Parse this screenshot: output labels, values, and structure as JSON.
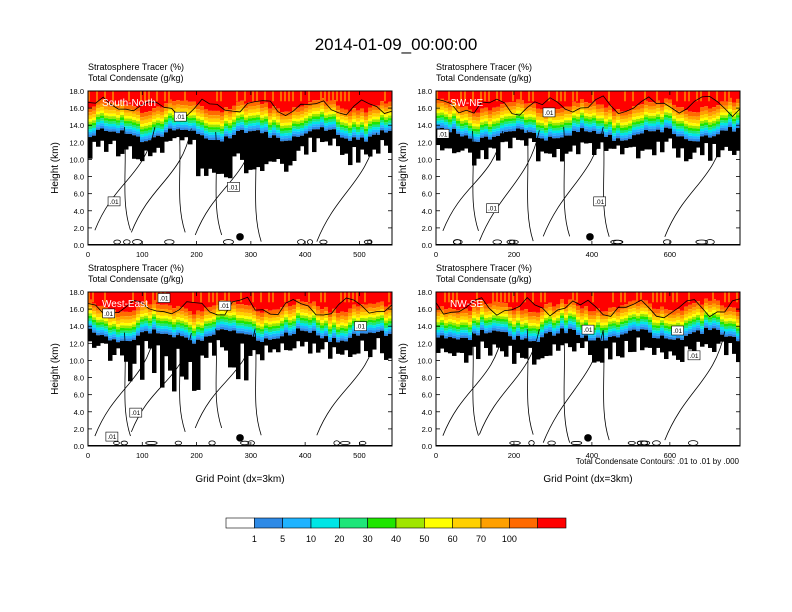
{
  "title": "2014-01-09_00:00:00",
  "footnote": "Total Condensate Contours: .01 to .01 by .000",
  "colorbar": {
    "colors": [
      "#ffffff",
      "#2e8ae6",
      "#1fb3ff",
      "#00e6e6",
      "#1ee679",
      "#1fe600",
      "#a0e600",
      "#ffff00",
      "#ffd000",
      "#ffa000",
      "#ff6a00",
      "#ff0000"
    ],
    "labels": [
      "1",
      "5",
      "10",
      "20",
      "30",
      "40",
      "50",
      "60",
      "70",
      "100"
    ]
  },
  "chart_data": [
    {
      "type": "heatmap",
      "panel_label": "South-North",
      "title_lines": [
        "Stratosphere Tracer   (%)",
        "Total Condensate   (g/kg)"
      ],
      "ylabel": "Height (km)",
      "xlabel": "",
      "ylim": [
        0,
        18
      ],
      "yticks": [
        "0.0",
        "2.0",
        "4.0",
        "6.0",
        "8.0",
        "10.0",
        "12.0",
        "14.0",
        "16.0",
        "18.0"
      ],
      "xlim": [
        0,
        560
      ],
      "xticks": [
        0,
        100,
        200,
        300,
        400,
        500
      ],
      "marker_x": 280,
      "contour_labels": [
        {
          "text": ".01",
          "x": 170,
          "y": 15.0
        },
        {
          "text": ".01",
          "x": 268,
          "y": 6.8
        },
        {
          "text": ".01",
          "x": 48,
          "y": 5.1
        }
      ]
    },
    {
      "type": "heatmap",
      "panel_label": "SW-NE",
      "title_lines": [
        "Stratosphere Tracer   (%)",
        "Total Condensate   (g/kg)"
      ],
      "ylabel": "Height (km)",
      "xlabel": "",
      "ylim": [
        0,
        18
      ],
      "yticks": [
        "0.0",
        "2.0",
        "4.0",
        "6.0",
        "8.0",
        "10.0",
        "12.0",
        "14.0",
        "16.0",
        "18.0"
      ],
      "xlim": [
        0,
        780
      ],
      "xticks": [
        0,
        200,
        400,
        600
      ],
      "marker_x": 395,
      "contour_labels": [
        {
          "text": ".01",
          "x": 18,
          "y": 13.0
        },
        {
          "text": ".01",
          "x": 290,
          "y": 15.5
        },
        {
          "text": ".01",
          "x": 145,
          "y": 4.3
        },
        {
          "text": ".01",
          "x": 420,
          "y": 5.1
        }
      ]
    },
    {
      "type": "heatmap",
      "panel_label": "West-East",
      "title_lines": [
        "Stratosphere Tracer   (%)",
        "Total Condensate   (g/kg)"
      ],
      "ylabel": "Height (km)",
      "xlabel": "Grid Point (dx=3km)",
      "ylim": [
        0,
        18
      ],
      "yticks": [
        "0.0",
        "2.0",
        "4.0",
        "6.0",
        "8.0",
        "10.0",
        "12.0",
        "14.0",
        "16.0",
        "18.0"
      ],
      "xlim": [
        0,
        560
      ],
      "xticks": [
        0,
        100,
        200,
        300,
        400,
        500
      ],
      "marker_x": 280,
      "contour_labels": [
        {
          "text": ".01",
          "x": 38,
          "y": 15.5
        },
        {
          "text": ".01",
          "x": 140,
          "y": 17.3
        },
        {
          "text": ".01",
          "x": 252,
          "y": 16.4
        },
        {
          "text": ".01",
          "x": 502,
          "y": 14.0
        },
        {
          "text": ".01",
          "x": 88,
          "y": 3.9
        },
        {
          "text": ".01",
          "x": 44,
          "y": 1.1
        }
      ]
    },
    {
      "type": "heatmap",
      "panel_label": "NW-SE",
      "title_lines": [
        "Stratosphere Tracer   (%)",
        "Total Condensate   (g/kg)"
      ],
      "ylabel": "Height (km)",
      "xlabel": "Grid Point (dx=3km)",
      "ylim": [
        0,
        18
      ],
      "yticks": [
        "0.0",
        "2.0",
        "4.0",
        "6.0",
        "8.0",
        "10.0",
        "12.0",
        "14.0",
        "16.0",
        "18.0"
      ],
      "xlim": [
        0,
        780
      ],
      "xticks": [
        0,
        200,
        400,
        600
      ],
      "marker_x": 390,
      "contour_labels": [
        {
          "text": ".01",
          "x": 390,
          "y": 13.6
        },
        {
          "text": ".01",
          "x": 620,
          "y": 13.5
        },
        {
          "text": ".01",
          "x": 662,
          "y": 10.6
        }
      ]
    }
  ]
}
